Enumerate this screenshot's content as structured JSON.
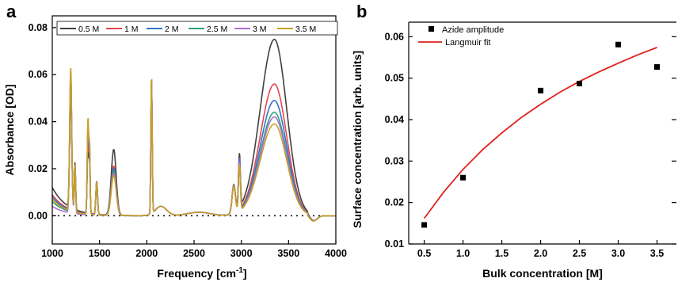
{
  "chart_data": [
    {
      "panel": "a",
      "type": "line",
      "xlabel": "Frequency [cm",
      "xlabel_sup": "-1",
      "xlabel_end": "]",
      "ylabel": "Absorbance [OD]",
      "xlim": [
        1000,
        4000
      ],
      "ylim": [
        -0.012,
        0.085
      ],
      "xticks": [
        1000,
        1500,
        2000,
        2500,
        3000,
        3500,
        4000
      ],
      "yticks": [
        "0.00",
        "0.02",
        "0.04",
        "0.06",
        "0.08"
      ],
      "legend_position": "top",
      "baseline": 0,
      "series": [
        {
          "name": "0.5 M",
          "color": "#404040",
          "broad_peak": 0.075,
          "peak_1195": 0.049,
          "peak_1380": 0.03,
          "peak_1650": 0.028,
          "peak_2050": 0.058,
          "peak_2980": 0.023,
          "offset": 0.012
        },
        {
          "name": "1 M",
          "color": "#e8474c",
          "broad_peak": 0.056,
          "peak_1195": 0.052,
          "peak_1380": 0.034,
          "peak_1650": 0.021,
          "peak_2050": 0.058,
          "peak_2980": 0.022,
          "offset": 0.009
        },
        {
          "name": "2 M",
          "color": "#3573c9",
          "broad_peak": 0.049,
          "peak_1195": 0.056,
          "peak_1380": 0.037,
          "peak_1650": 0.02,
          "peak_2050": 0.058,
          "peak_2980": 0.022,
          "offset": 0.008
        },
        {
          "name": "2.5 M",
          "color": "#2aa673",
          "broad_peak": 0.044,
          "peak_1195": 0.058,
          "peak_1380": 0.039,
          "peak_1650": 0.019,
          "peak_2050": 0.058,
          "peak_2980": 0.021,
          "offset": 0.006
        },
        {
          "name": "3 M",
          "color": "#b06ed6",
          "broad_peak": 0.042,
          "peak_1195": 0.06,
          "peak_1380": 0.04,
          "peak_1650": 0.018,
          "peak_2050": 0.059,
          "peak_2980": 0.021,
          "offset": 0.004
        },
        {
          "name": "3.5 M",
          "color": "#c8a02a",
          "broad_peak": 0.039,
          "peak_1195": 0.061,
          "peak_1380": 0.041,
          "peak_1650": 0.017,
          "peak_2050": 0.059,
          "peak_2980": 0.02,
          "offset": 0.007
        }
      ]
    },
    {
      "panel": "b",
      "type": "scatter",
      "xlabel": "Bulk concentration [M]",
      "ylabel": "Surface concentration [arb. units]",
      "xlim": [
        0.3,
        3.75
      ],
      "ylim": [
        0.01,
        0.0635
      ],
      "xticks": [
        "0.5",
        "1.0",
        "1.5",
        "2.0",
        "2.5",
        "3.0",
        "3.5"
      ],
      "yticks": [
        "0.01",
        "0.02",
        "0.03",
        "0.04",
        "0.05",
        "0.06"
      ],
      "legend_position": "top-left",
      "series": [
        {
          "name": "Azide amplitude",
          "kind": "markers",
          "color": "#000000",
          "x": [
            0.5,
            1.0,
            2.0,
            2.5,
            3.0,
            3.5
          ],
          "y": [
            0.0146,
            0.026,
            0.047,
            0.0487,
            0.0581,
            0.0527
          ]
        },
        {
          "name": "Langmuir fit",
          "kind": "line",
          "color": "#e0201c",
          "x": [
            0.5,
            0.75,
            1.0,
            1.25,
            1.5,
            1.75,
            2.0,
            2.25,
            2.5,
            2.75,
            3.0,
            3.25,
            3.5
          ],
          "y": [
            0.0162,
            0.0225,
            0.028,
            0.0327,
            0.0368,
            0.0405,
            0.0437,
            0.0466,
            0.0492,
            0.0515,
            0.0536,
            0.0556,
            0.0574
          ]
        }
      ]
    }
  ],
  "panels": {
    "a": {
      "letter": "a"
    },
    "b": {
      "letter": "b"
    }
  }
}
